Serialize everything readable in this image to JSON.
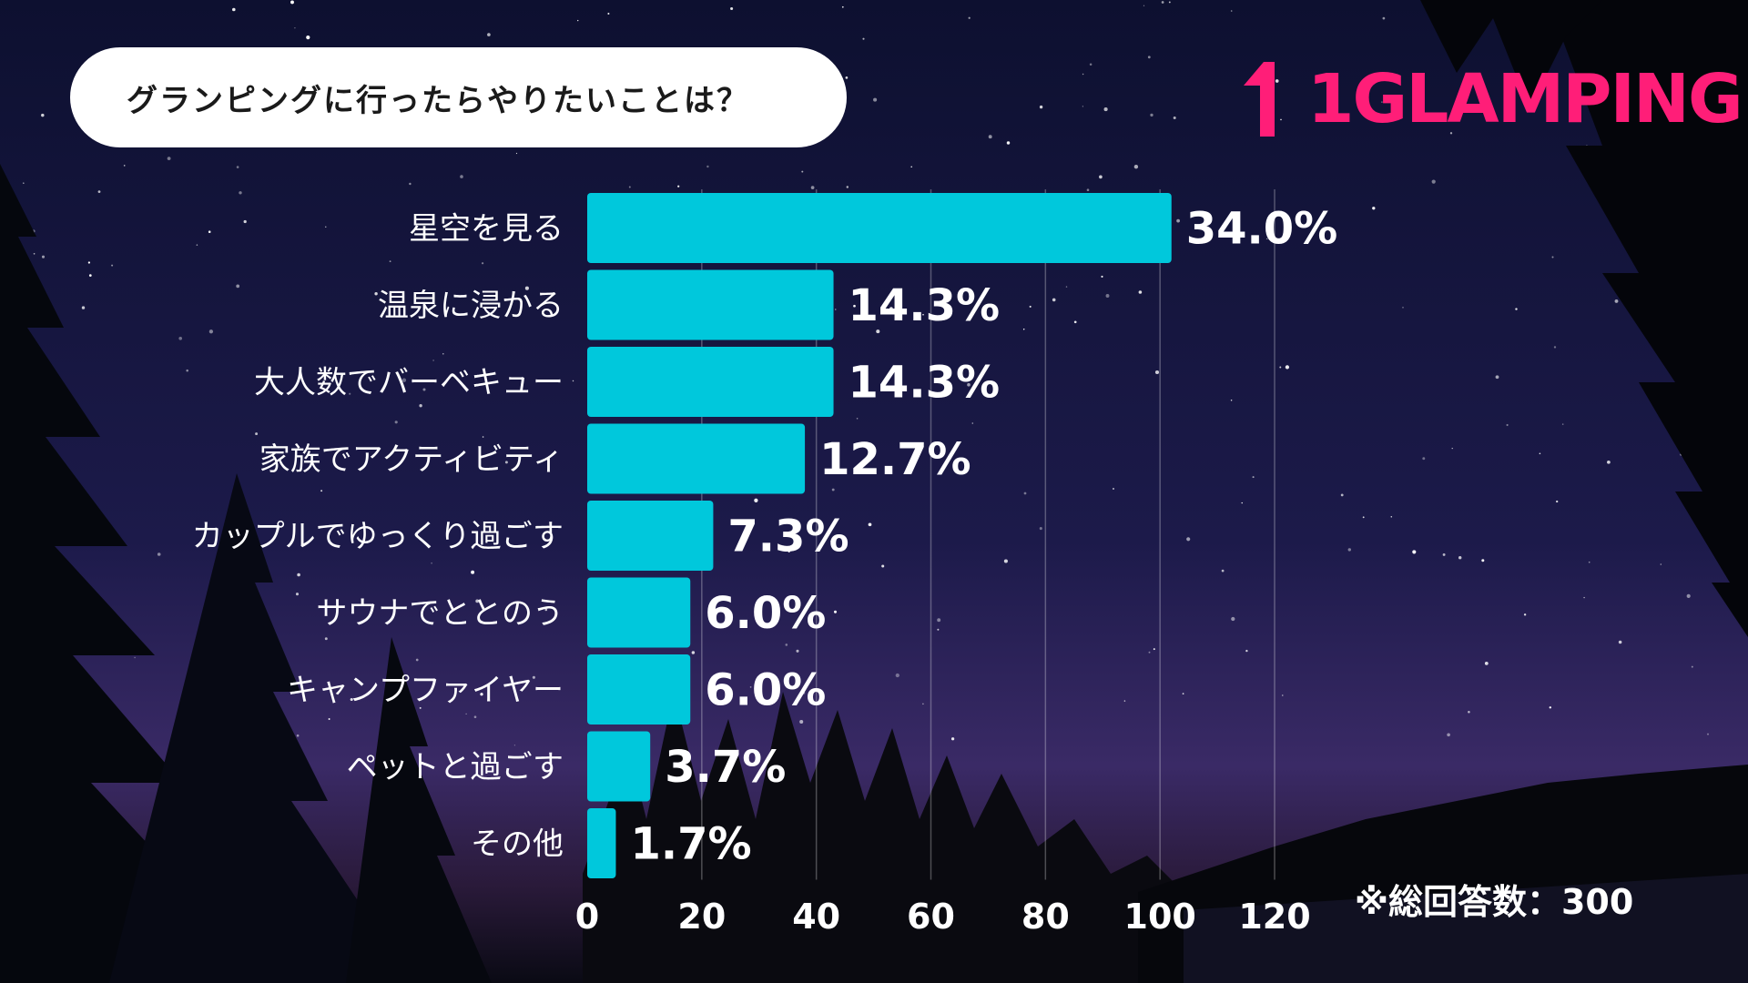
{
  "title": "グランピングに行ったらやりたいことは？",
  "brand": {
    "logo_text": "1GLAMPING",
    "color": "#ff1e78"
  },
  "total_responses": "※総回答数：300",
  "colors": {
    "bar": "#00c8dc",
    "text": "#ffffff"
  },
  "chart_data": {
    "type": "bar",
    "orientation": "horizontal",
    "title": "グランピングに行ったらやりたいことは？",
    "categories": [
      "星空を見る",
      "温泉に浸かる",
      "大人数でバーベキュー",
      "家族でアクティビティ",
      "カップルでゆっくり過ごす",
      "サウナでととのう",
      "キャンプファイヤー",
      "ペットと過ごす",
      "その他"
    ],
    "values": [
      102,
      43,
      43,
      38,
      22,
      18,
      18,
      11,
      5
    ],
    "value_labels": [
      "34.0%",
      "14.3%",
      "14.3%",
      "12.7%",
      "7.3%",
      "6.0%",
      "6.0%",
      "3.7%",
      "1.7%"
    ],
    "xlim": [
      0,
      120
    ],
    "x_ticks": [
      "0",
      "20",
      "40",
      "60",
      "80",
      "100",
      "120"
    ],
    "grid": "vertical"
  }
}
